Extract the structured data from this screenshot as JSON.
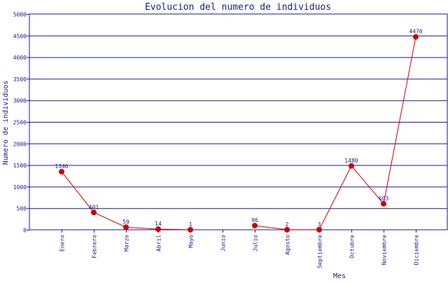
{
  "chart_data": {
    "type": "line",
    "title": "Evolucion del numero de individuos",
    "xlabel": "Mes",
    "ylabel": "Numero de individuos",
    "categories": [
      "Enero",
      "Febrero",
      "Marzo",
      "Abril",
      "Mayo",
      "Junio",
      "Julio",
      "Agosto",
      "Septiembre",
      "Octubre",
      "Noviembre",
      "Diciembre"
    ],
    "series": [
      {
        "values": [
          1346,
          401,
          59,
          14,
          1,
          null,
          96,
          2,
          3,
          1480,
          603,
          4470
        ]
      }
    ],
    "data_labels": [
      "1346",
      "401",
      "59",
      "14",
      "1",
      "",
      "96",
      "2",
      "3",
      "1480",
      "603",
      "4470"
    ],
    "yticks": [
      0,
      500,
      1000,
      1500,
      2000,
      2500,
      3000,
      3500,
      4000,
      4500,
      5000
    ],
    "ylim": [
      0,
      5000
    ],
    "grid": true,
    "legend": "none",
    "colors": {
      "text": "#1a1a8c",
      "grid": "#1a1a8c",
      "line": "#cc0000",
      "marker": "#cc0000"
    }
  }
}
